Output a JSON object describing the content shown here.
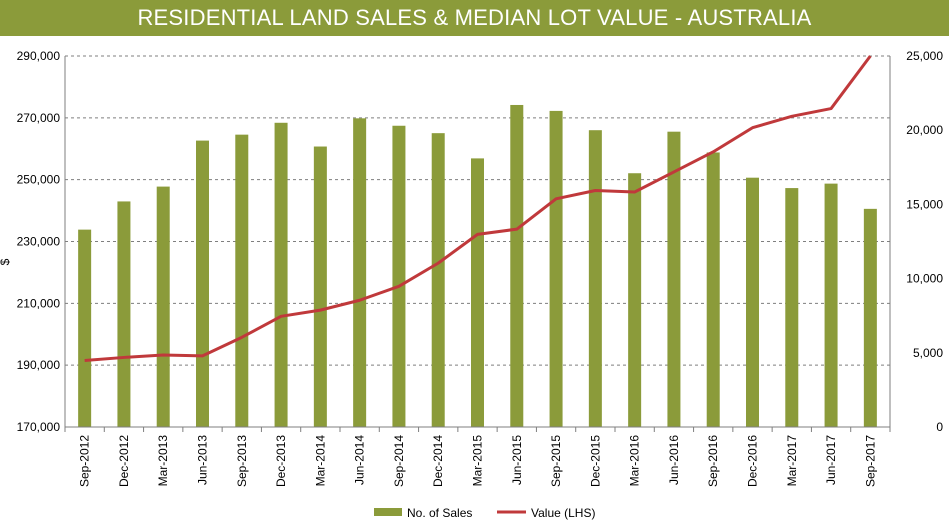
{
  "title": "RESIDENTIAL LAND SALES & MEDIAN LOT VALUE - AUSTRALIA",
  "colors": {
    "title_bg": "#8b9b3a",
    "bars": "#8b9b3a",
    "line": "#c0393b"
  },
  "chart_data": {
    "type": "bar",
    "title": "RESIDENTIAL LAND SALES & MEDIAN LOT VALUE - AUSTRALIA",
    "ylabel_left": "$",
    "ylim_left": [
      170000,
      290000
    ],
    "yticks_left": [
      "170,000",
      "190,000",
      "210,000",
      "230,000",
      "250,000",
      "270,000",
      "290,000"
    ],
    "ylim_right": [
      0,
      25000
    ],
    "yticks_right": [
      "0",
      "5,000",
      "10,000",
      "15,000",
      "20,000",
      "25,000"
    ],
    "grid": "horizontal dashed",
    "legend_position": "bottom",
    "categories": [
      "Sep-2012",
      "Dec-2012",
      "Mar-2013",
      "Jun-2013",
      "Sep-2013",
      "Dec-2013",
      "Mar-2014",
      "Jun-2014",
      "Sep-2014",
      "Dec-2014",
      "Mar-2015",
      "Jun-2015",
      "Sep-2015",
      "Dec-2015",
      "Mar-2016",
      "Jun-2016",
      "Sep-2016",
      "Dec-2016",
      "Mar-2017",
      "Jun-2017",
      "Sep-2017"
    ],
    "series": [
      {
        "name": "No. of Sales",
        "type": "bar",
        "axis": "right",
        "values": [
          13300,
          15200,
          16200,
          19300,
          19700,
          20500,
          18900,
          20800,
          20300,
          19800,
          18100,
          21700,
          21300,
          20000,
          17100,
          19900,
          18500,
          16800,
          16100,
          16400,
          14700
        ]
      },
      {
        "name": "Value (LHS)",
        "type": "line",
        "axis": "left",
        "values": [
          191500,
          192500,
          193300,
          193000,
          199000,
          205800,
          207800,
          211000,
          215500,
          223000,
          232300,
          234000,
          243800,
          246500,
          246000,
          252500,
          259000,
          266800,
          270500,
          273000,
          290000
        ]
      }
    ]
  }
}
